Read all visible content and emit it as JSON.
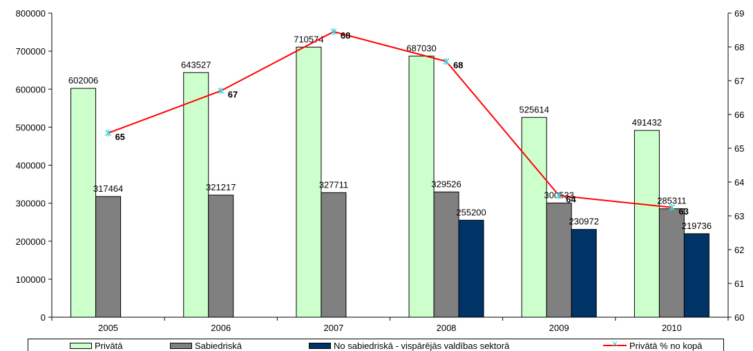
{
  "chart_data": {
    "type": "bar",
    "categories": [
      "2005",
      "2006",
      "2007",
      "2008",
      "2009",
      "2010"
    ],
    "series": [
      {
        "name": "Privātā",
        "values": [
          602006,
          643527,
          710574,
          687030,
          525614,
          491432
        ],
        "color": "#ccffcc"
      },
      {
        "name": "Sabiedriskā",
        "values": [
          317464,
          321217,
          327711,
          329526,
          300533,
          285311
        ],
        "color": "#808080"
      },
      {
        "name": "No sabiedriskā - vispārējās valdības sektorā",
        "values": [
          null,
          null,
          null,
          255200,
          230972,
          219736
        ],
        "color": "#003366"
      }
    ],
    "line_series": {
      "name": "Privātā % no kopā",
      "values": [
        65,
        67,
        68,
        68,
        64,
        63
      ],
      "plotted": [
        65.45,
        66.7,
        68.45,
        67.57,
        63.6,
        63.25
      ],
      "axis": "right",
      "color": "#ff0000",
      "marker_color": "#3fd6e0"
    },
    "y_left": {
      "min": 0,
      "max": 800000,
      "ticks": [
        "0",
        "100000",
        "200000",
        "300000",
        "400000",
        "500000",
        "600000",
        "700000",
        "800000"
      ]
    },
    "y_right": {
      "min": 60,
      "max": 69,
      "ticks": [
        "60",
        "61",
        "62",
        "63",
        "64",
        "65",
        "66",
        "67",
        "68",
        "69"
      ]
    },
    "grid": false,
    "legend_position": "bottom"
  },
  "legend": {
    "items": [
      {
        "label": "Privātā"
      },
      {
        "label": "Sabiedriskā"
      },
      {
        "label": "No sabiedriskā - vispārējās valdības sektorā"
      },
      {
        "label": "Privātā % no kopā"
      }
    ]
  }
}
